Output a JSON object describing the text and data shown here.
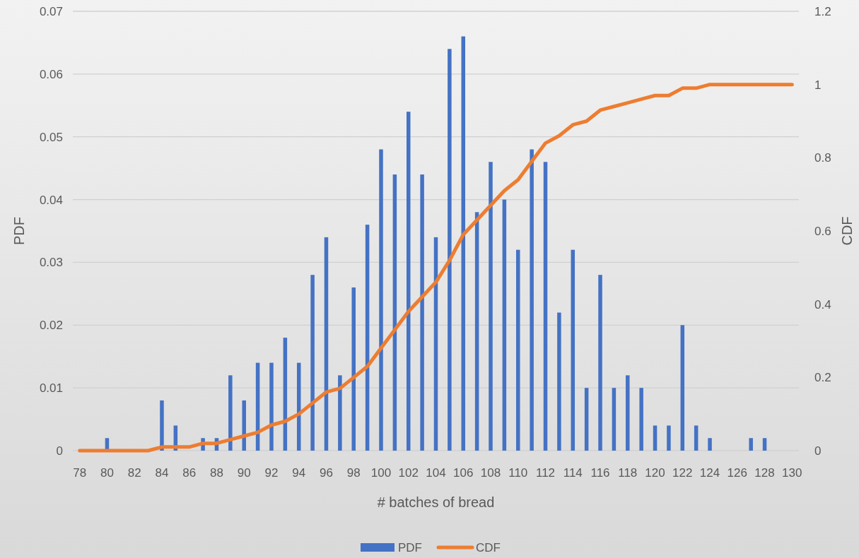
{
  "chart_data": {
    "type": "bar",
    "xlabel": "# batches of bread",
    "ylabel": "PDF",
    "y2label": "CDF",
    "categories": [
      "78",
      null,
      "80",
      null,
      "82",
      null,
      "84",
      null,
      "86",
      null,
      "88",
      null,
      "90",
      null,
      "92",
      null,
      "94",
      null,
      "96",
      null,
      "98",
      null,
      "100",
      null,
      "102",
      null,
      "104",
      null,
      "106",
      null,
      "108",
      null,
      "110",
      null,
      "112",
      null,
      "114",
      null,
      "116",
      null,
      "118",
      null,
      "120",
      null,
      "122",
      null,
      "124",
      null,
      "126",
      null,
      "128",
      null,
      "130"
    ],
    "series": [
      {
        "name": "PDF",
        "color": "#4472c4",
        "values": [
          0,
          0,
          0.002,
          0,
          0,
          0,
          0.008,
          0.004,
          0,
          0.002,
          0.002,
          0.012,
          0.008,
          0.014,
          0.014,
          0.018,
          0.014,
          0.028,
          0.034,
          0.012,
          0.026,
          0.036,
          0.048,
          0.044,
          0.054,
          0.044,
          0.034,
          0.064,
          0.066,
          0.038,
          0.046,
          0.04,
          0.032,
          0.048,
          0.046,
          0.022,
          0.032,
          0.01,
          0.028,
          0.01,
          0.012,
          0.01,
          0.004,
          0.004,
          0.02,
          0.004,
          0.002,
          0,
          0,
          0.002,
          0.002,
          0,
          0
        ]
      },
      {
        "name": "CDF",
        "type": "line",
        "axis": "y2",
        "color": "#ed7d31",
        "values": [
          0,
          0,
          0,
          0,
          0,
          0,
          0.01,
          0.01,
          0.01,
          0.02,
          0.02,
          0.03,
          0.04,
          0.05,
          0.07,
          0.08,
          0.1,
          0.13,
          0.16,
          0.17,
          0.2,
          0.23,
          0.28,
          0.33,
          0.38,
          0.42,
          0.46,
          0.52,
          0.59,
          0.63,
          0.67,
          0.71,
          0.74,
          0.79,
          0.84,
          0.86,
          0.89,
          0.9,
          0.93,
          0.94,
          0.95,
          0.96,
          0.97,
          0.97,
          0.99,
          0.99,
          1,
          1,
          1,
          1,
          1,
          1,
          1
        ]
      }
    ],
    "ylim": [
      0,
      0.07
    ],
    "yticks": [
      0,
      0.01,
      0.02,
      0.03,
      0.04,
      0.05,
      0.06,
      0.07
    ],
    "y2lim": [
      0,
      1.2
    ],
    "y2ticks": [
      0,
      0.2,
      0.4,
      0.6,
      0.8,
      1,
      1.2
    ],
    "grid": "y",
    "legend": "bottom",
    "line_style": "solid",
    "marker": "none"
  }
}
